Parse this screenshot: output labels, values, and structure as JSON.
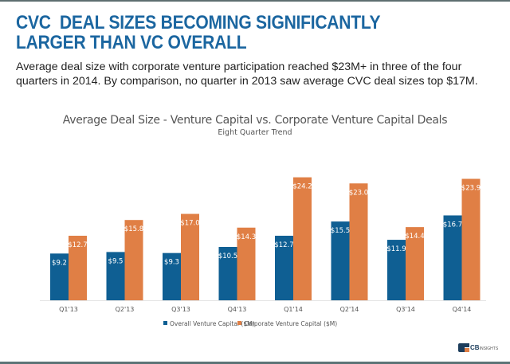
{
  "headline": "CVC  DEAL SIZES BECOMING SIGNIFICANTLY LARGER THAN VC OVERALL",
  "subtitle": "Average deal size with corporate venture participation reached $23M+ in three of the four quarters in 2014. By comparison, no quarter in 2013 saw average CVC deal sizes top $17M.",
  "colors": {
    "headline": "#1b66a0",
    "vc": "#0f5f93",
    "cvc": "#e07f45"
  },
  "logo": {
    "brand": "CB",
    "suffix": "INSIGHTS"
  },
  "chart_data": {
    "type": "bar",
    "title": "Average Deal Size - Venture Capital vs. Corporate Venture Capital Deals",
    "subtitle": "Eight Quarter Trend",
    "xlabel": "",
    "ylabel": "",
    "ylim": [
      0,
      27
    ],
    "grid": false,
    "legend_position": "bottom-center",
    "categories": [
      "Q1'13",
      "Q2'13",
      "Q3'13",
      "Q4'13",
      "Q1'14",
      "Q2'14",
      "Q3'14",
      "Q4'14"
    ],
    "series": [
      {
        "name": "Overall Venture Capital ($M)",
        "color": "#0f5f93",
        "values": [
          9.2,
          9.5,
          9.3,
          10.5,
          12.7,
          15.5,
          11.9,
          16.7
        ],
        "labels": [
          "$9.2",
          "$9.5",
          "$9.3",
          "$10.5",
          "$12.7",
          "$15.5",
          "$11.9",
          "$16.7"
        ]
      },
      {
        "name": "Corporate Venture Capital ($M)",
        "color": "#e07f45",
        "values": [
          12.7,
          15.8,
          17.0,
          14.3,
          24.2,
          23.0,
          14.4,
          23.9
        ],
        "labels": [
          "$12.7",
          "$15.8",
          "$17.0",
          "$14.3",
          "$24.2",
          "$23.0",
          "$14.4",
          "$23.9"
        ]
      }
    ]
  }
}
